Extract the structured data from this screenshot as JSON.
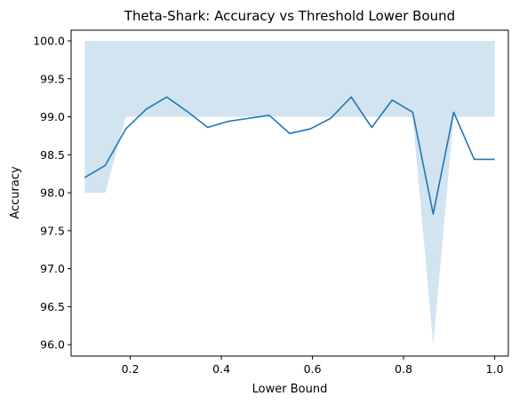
{
  "chart_data": {
    "type": "line",
    "title": "Theta-Shark: Accuracy vs Threshold Lower Bound",
    "xlabel": "Lower Bound",
    "ylabel": "Accuracy",
    "xlim": [
      0.07,
      1.03
    ],
    "ylim": [
      95.85,
      100.14
    ],
    "xticks": [
      0.2,
      0.4,
      0.6,
      0.8,
      1.0
    ],
    "xtick_labels": [
      "0.2",
      "0.4",
      "0.6",
      "0.8",
      "1.0"
    ],
    "yticks": [
      96.0,
      96.5,
      97.0,
      97.5,
      98.0,
      98.5,
      99.0,
      99.5,
      100.0
    ],
    "ytick_labels": [
      "96.0",
      "96.5",
      "97.0",
      "97.5",
      "98.0",
      "98.5",
      "99.0",
      "99.5",
      "100.0"
    ],
    "grid": false,
    "line_color": "#1f77b4",
    "band_color": "#1f77b4",
    "band_opacity": 0.2,
    "x": [
      0.1,
      0.145,
      0.19,
      0.235,
      0.28,
      0.325,
      0.37,
      0.415,
      0.46,
      0.505,
      0.55,
      0.595,
      0.64,
      0.685,
      0.73,
      0.775,
      0.82,
      0.865,
      0.91,
      0.955,
      1.0
    ],
    "series": [
      {
        "values": [
          98.2,
          98.36,
          98.84,
          99.1,
          99.26,
          99.07,
          98.86,
          98.94,
          98.98,
          99.02,
          98.78,
          98.84,
          98.98,
          99.26,
          98.86,
          99.22,
          99.06,
          97.72,
          99.06,
          98.44,
          98.44
        ],
        "band_lower": [
          98.0,
          98.0,
          99.0,
          99.0,
          99.0,
          99.0,
          99.0,
          99.0,
          99.0,
          99.0,
          99.0,
          99.0,
          99.0,
          99.0,
          99.0,
          99.0,
          99.0,
          96.0,
          99.0,
          99.0,
          99.0
        ],
        "band_upper": [
          100.0,
          100.0,
          100.0,
          100.0,
          100.0,
          100.0,
          100.0,
          100.0,
          100.0,
          100.0,
          100.0,
          100.0,
          100.0,
          100.0,
          100.0,
          100.0,
          100.0,
          100.0,
          100.0,
          100.0,
          100.0
        ]
      }
    ]
  }
}
